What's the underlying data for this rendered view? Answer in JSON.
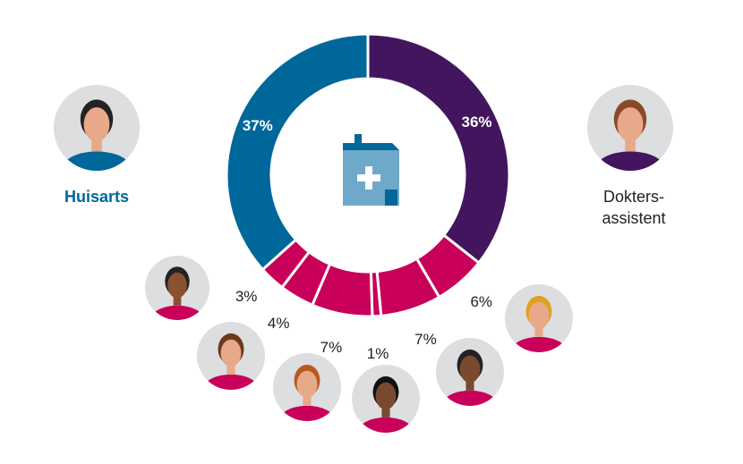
{
  "chart_data": {
    "type": "donut",
    "categories": [
      "Doktersassistent",
      "",
      "",
      "",
      "",
      "",
      "",
      "Huisarts"
    ],
    "values": [
      36,
      6,
      7,
      1,
      7,
      4,
      3,
      37
    ],
    "labels": [
      "36%",
      "6%",
      "7%",
      "1%",
      "7%",
      "4%",
      "3%",
      "37%"
    ],
    "colors": [
      "#43155f",
      "#c8005a",
      "#c8005a",
      "#c8005a",
      "#c8005a",
      "#c8005a",
      "#c8005a",
      "#00679a"
    ],
    "center_icon": "medical-building-icon"
  },
  "roles": {
    "huisarts": "Huisarts",
    "assistent_line1": "Dokters-",
    "assistent_line2": "assistent"
  },
  "colors": {
    "huisarts": "#00679a",
    "assistent": "#43155f",
    "other": "#c8005a",
    "avatar_bg": "#dcdee0"
  }
}
